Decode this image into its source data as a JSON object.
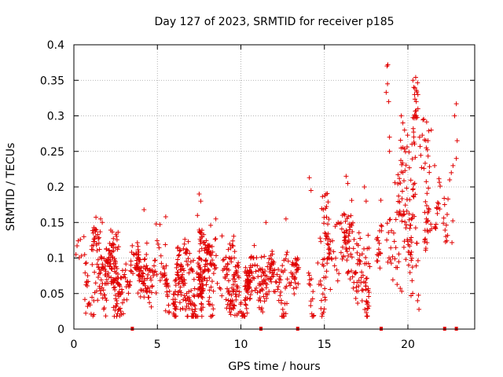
{
  "chart_data": {
    "type": "scatter",
    "title": "Day 127 of 2023, SRMTID for receiver p185",
    "xlabel": "GPS time / hours",
    "ylabel": "SRMTID / TECUs",
    "xlim": [
      0,
      24
    ],
    "ylim": [
      0,
      0.4
    ],
    "grid": true,
    "marker": "plus",
    "color": "#e00000",
    "x_ticks": [
      0,
      5,
      10,
      15,
      20
    ],
    "x_tick_labels": [
      "0",
      "5",
      "10",
      "15",
      "20"
    ],
    "y_ticks": [
      0,
      0.05,
      0.1,
      0.15,
      0.2,
      0.25,
      0.3,
      0.35,
      0.4
    ],
    "y_tick_labels": [
      "0",
      "0.05",
      "0.1",
      "0.15",
      "0.2",
      "0.25",
      "0.3",
      "0.35",
      "0.4"
    ],
    "zero_markers_x": [
      3.5,
      11.2,
      13.4,
      18.4,
      22.2,
      22.9
    ],
    "trend": [
      {
        "t": 0,
        "mean": 0.09,
        "spread": 0.03
      },
      {
        "t": 1,
        "mean": 0.095,
        "spread": 0.035
      },
      {
        "t": 2,
        "mean": 0.085,
        "spread": 0.04
      },
      {
        "t": 3,
        "mean": 0.065,
        "spread": 0.03
      },
      {
        "t": 4,
        "mean": 0.085,
        "spread": 0.035
      },
      {
        "t": 5,
        "mean": 0.09,
        "spread": 0.04
      },
      {
        "t": 6,
        "mean": 0.085,
        "spread": 0.035
      },
      {
        "t": 7,
        "mean": 0.065,
        "spread": 0.035
      },
      {
        "t": 8,
        "mean": 0.075,
        "spread": 0.04
      },
      {
        "t": 9,
        "mean": 0.065,
        "spread": 0.035
      },
      {
        "t": 10,
        "mean": 0.05,
        "spread": 0.025
      },
      {
        "t": 11,
        "mean": 0.06,
        "spread": 0.03
      },
      {
        "t": 12,
        "mean": 0.07,
        "spread": 0.035
      },
      {
        "t": 13,
        "mean": 0.075,
        "spread": 0.035
      },
      {
        "t": 14,
        "mean": 0.085,
        "spread": 0.04
      },
      {
        "t": 15,
        "mean": 0.1,
        "spread": 0.045
      },
      {
        "t": 16,
        "mean": 0.11,
        "spread": 0.05
      },
      {
        "t": 17,
        "mean": 0.1,
        "spread": 0.05
      },
      {
        "t": 18,
        "mean": 0.09,
        "spread": 0.05
      },
      {
        "t": 19,
        "mean": 0.14,
        "spread": 0.07
      },
      {
        "t": 20,
        "mean": 0.18,
        "spread": 0.08
      },
      {
        "t": 21,
        "mean": 0.17,
        "spread": 0.07
      },
      {
        "t": 22,
        "mean": 0.15,
        "spread": 0.05
      },
      {
        "t": 22.7,
        "mean": 0.18,
        "spread": 0.06
      }
    ],
    "spikes": [
      {
        "x": 0.6,
        "y": 0.13
      },
      {
        "x": 1.6,
        "y": 0.155
      },
      {
        "x": 1.7,
        "y": 0.15
      },
      {
        "x": 4.2,
        "y": 0.168
      },
      {
        "x": 5.5,
        "y": 0.158
      },
      {
        "x": 7.5,
        "y": 0.19
      },
      {
        "x": 7.6,
        "y": 0.18
      },
      {
        "x": 7.4,
        "y": 0.16
      },
      {
        "x": 8.5,
        "y": 0.155
      },
      {
        "x": 11.5,
        "y": 0.15
      },
      {
        "x": 12.7,
        "y": 0.155
      },
      {
        "x": 14.1,
        "y": 0.213
      },
      {
        "x": 14.2,
        "y": 0.195
      },
      {
        "x": 15.1,
        "y": 0.19
      },
      {
        "x": 16.3,
        "y": 0.215
      },
      {
        "x": 16.4,
        "y": 0.205
      },
      {
        "x": 17.4,
        "y": 0.2
      },
      {
        "x": 17.5,
        "y": 0.18
      },
      {
        "x": 18.75,
        "y": 0.37
      },
      {
        "x": 18.8,
        "y": 0.372
      },
      {
        "x": 18.78,
        "y": 0.345
      },
      {
        "x": 18.7,
        "y": 0.333
      },
      {
        "x": 18.85,
        "y": 0.32
      },
      {
        "x": 18.9,
        "y": 0.27
      },
      {
        "x": 18.9,
        "y": 0.25
      },
      {
        "x": 19.6,
        "y": 0.3
      },
      {
        "x": 19.7,
        "y": 0.29
      },
      {
        "x": 19.8,
        "y": 0.28
      },
      {
        "x": 20.3,
        "y": 0.35
      },
      {
        "x": 20.35,
        "y": 0.34
      },
      {
        "x": 20.4,
        "y": 0.33
      },
      {
        "x": 20.5,
        "y": 0.32
      },
      {
        "x": 20.6,
        "y": 0.31
      },
      {
        "x": 20.7,
        "y": 0.27
      },
      {
        "x": 21.1,
        "y": 0.255
      },
      {
        "x": 21.2,
        "y": 0.265
      },
      {
        "x": 21.4,
        "y": 0.28
      },
      {
        "x": 21.6,
        "y": 0.23
      },
      {
        "x": 22.5,
        "y": 0.21
      },
      {
        "x": 22.6,
        "y": 0.22
      },
      {
        "x": 22.7,
        "y": 0.23
      },
      {
        "x": 22.9,
        "y": 0.317
      },
      {
        "x": 22.8,
        "y": 0.3
      },
      {
        "x": 22.95,
        "y": 0.265
      },
      {
        "x": 22.9,
        "y": 0.24
      }
    ],
    "n_points": 1400
  }
}
